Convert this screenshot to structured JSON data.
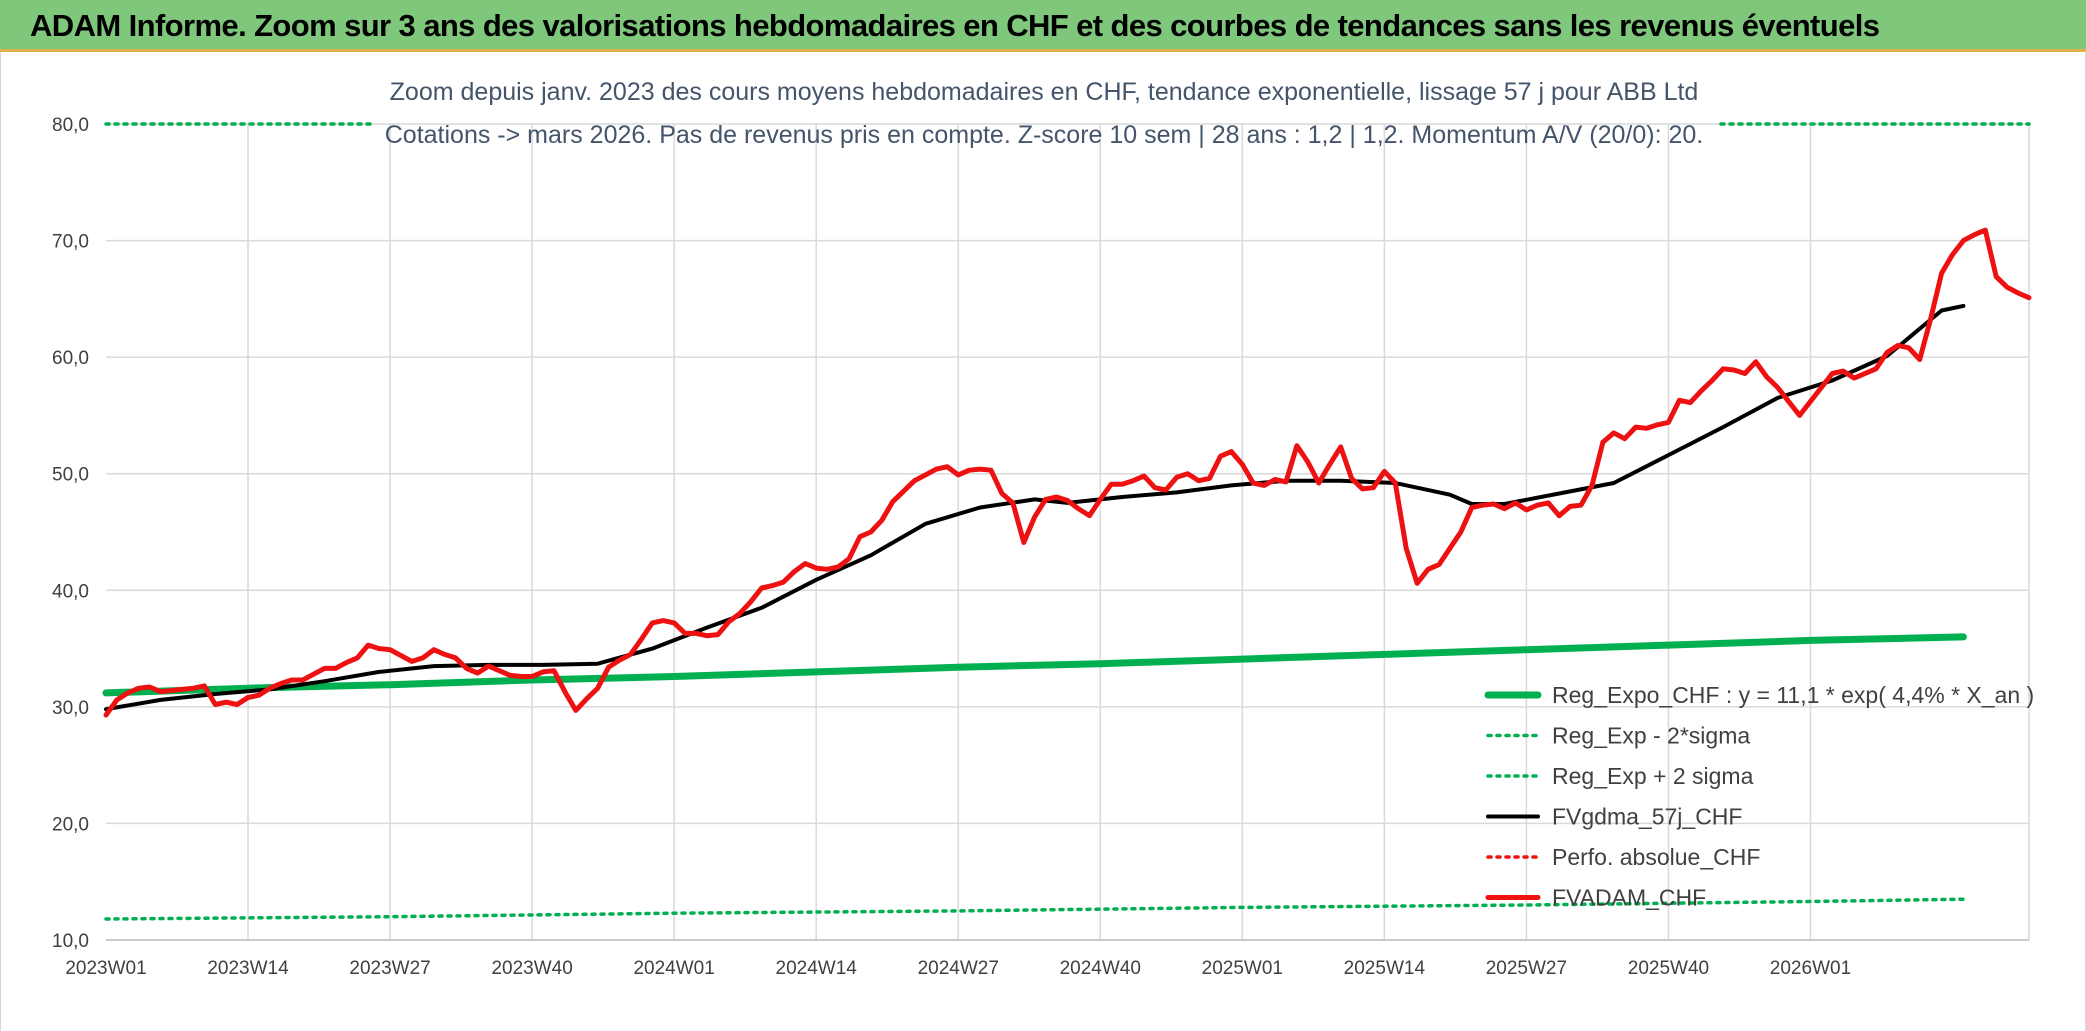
{
  "banner": {
    "title": "ADAM Informe. Zoom sur 3 ans des valorisations hebdomadaires en CHF et des courbes de tendances sans les revenus éventuels"
  },
  "colors": {
    "banner_bg": "#7fc77b",
    "reg_expo": "#00b050",
    "fvgdma": "#000000",
    "fvadam": "#ee1111",
    "perfo": "#ee1111"
  },
  "chart_data": {
    "type": "line",
    "title": "Zoom depuis janv. 2023 des cours moyens hebdomadaires en CHF, tendance exponentielle, lissage 57 j pour ABB Ltd",
    "subtitle": "Cotations -> mars 2026. Pas de revenus pris en compte. Z-score 10 sem | 28 ans : 1,2 | 1,2. Momentum A/V (20/0): 20.",
    "xlabel": "",
    "ylabel": "",
    "ylim": [
      10,
      80
    ],
    "y_ticks": [
      "10,0",
      "20,0",
      "30,0",
      "40,0",
      "50,0",
      "60,0",
      "70,0",
      "80,0"
    ],
    "x_tick_labels": [
      "2023W01",
      "2023W14",
      "2023W27",
      "2023W40",
      "2024W01",
      "2024W14",
      "2024W27",
      "2024W40",
      "2025W01",
      "2025W14",
      "2025W27",
      "2025W40",
      "2026W01"
    ],
    "grid": true,
    "legend_position": "bottom-right",
    "series": [
      {
        "name": "Reg_Expo_CHF : y = 11,1 * exp( 4,4% *  X_an )",
        "style": "solid-thick",
        "color": "#00b050",
        "points": [
          [
            0,
            31.2
          ],
          [
            13,
            31.6
          ],
          [
            26,
            31.9
          ],
          [
            39,
            32.3
          ],
          [
            52,
            32.6
          ],
          [
            65,
            33.0
          ],
          [
            78,
            33.4
          ],
          [
            91,
            33.7
          ],
          [
            104,
            34.1
          ],
          [
            117,
            34.5
          ],
          [
            130,
            34.9
          ],
          [
            143,
            35.3
          ],
          [
            156,
            35.7
          ],
          [
            170,
            36.0
          ]
        ]
      },
      {
        "name": "Reg_Exp - 2*sigma",
        "style": "dotted",
        "color": "#00b050",
        "points": [
          [
            0,
            11.8
          ],
          [
            26,
            12.0
          ],
          [
            52,
            12.3
          ],
          [
            78,
            12.5
          ],
          [
            104,
            12.8
          ],
          [
            130,
            13.0
          ],
          [
            156,
            13.3
          ],
          [
            170,
            13.5
          ]
        ]
      },
      {
        "name": "Reg_Exp + 2 sigma",
        "style": "dotted",
        "color": "#00b050",
        "points": [
          [
            0,
            80.0
          ],
          [
            170,
            80.0
          ]
        ]
      },
      {
        "name": "FVgdma_57j_CHF",
        "style": "solid",
        "color": "#000000",
        "points": [
          [
            0,
            29.8
          ],
          [
            5,
            30.6
          ],
          [
            10,
            31.1
          ],
          [
            15,
            31.5
          ],
          [
            20,
            32.2
          ],
          [
            25,
            33.0
          ],
          [
            30,
            33.5
          ],
          [
            35,
            33.6
          ],
          [
            40,
            33.6
          ],
          [
            45,
            33.7
          ],
          [
            50,
            35.0
          ],
          [
            55,
            36.8
          ],
          [
            60,
            38.5
          ],
          [
            65,
            40.9
          ],
          [
            70,
            43.0
          ],
          [
            75,
            45.7
          ],
          [
            80,
            47.1
          ],
          [
            85,
            47.8
          ],
          [
            88,
            47.5
          ],
          [
            93,
            48.0
          ],
          [
            98,
            48.4
          ],
          [
            103,
            49.0
          ],
          [
            108,
            49.4
          ],
          [
            113,
            49.4
          ],
          [
            118,
            49.2
          ],
          [
            123,
            48.2
          ],
          [
            125,
            47.4
          ],
          [
            128,
            47.4
          ],
          [
            133,
            48.3
          ],
          [
            138,
            49.2
          ],
          [
            143,
            51.6
          ],
          [
            148,
            54.0
          ],
          [
            153,
            56.5
          ],
          [
            158,
            58.0
          ],
          [
            163,
            60.1
          ],
          [
            168,
            64.0
          ],
          [
            170,
            64.4
          ]
        ]
      },
      {
        "name": "Perfo. absolue_CHF",
        "style": "dotted",
        "color": "#ee1111",
        "points": []
      },
      {
        "name": "FVADAM_CHF",
        "style": "solid-thick",
        "color": "#ee1111",
        "points": [
          [
            0,
            29.3
          ],
          [
            1,
            30.6
          ],
          [
            2,
            31.2
          ],
          [
            3,
            31.6
          ],
          [
            4,
            31.7
          ],
          [
            5,
            31.3
          ],
          [
            6,
            31.4
          ],
          [
            7,
            31.5
          ],
          [
            8,
            31.6
          ],
          [
            9,
            31.8
          ],
          [
            10,
            30.2
          ],
          [
            11,
            30.4
          ],
          [
            12,
            30.2
          ],
          [
            13,
            30.8
          ],
          [
            14,
            31.0
          ],
          [
            15,
            31.6
          ],
          [
            16,
            32.0
          ],
          [
            17,
            32.3
          ],
          [
            18,
            32.3
          ],
          [
            19,
            32.8
          ],
          [
            20,
            33.3
          ],
          [
            21,
            33.3
          ],
          [
            22,
            33.8
          ],
          [
            23,
            34.2
          ],
          [
            24,
            35.3
          ],
          [
            25,
            35.0
          ],
          [
            26,
            34.9
          ],
          [
            27,
            34.4
          ],
          [
            28,
            33.9
          ],
          [
            29,
            34.2
          ],
          [
            30,
            34.9
          ],
          [
            31,
            34.5
          ],
          [
            32,
            34.2
          ],
          [
            33,
            33.3
          ],
          [
            34,
            32.9
          ],
          [
            35,
            33.5
          ],
          [
            36,
            33.1
          ],
          [
            37,
            32.7
          ],
          [
            38,
            32.6
          ],
          [
            39,
            32.6
          ],
          [
            40,
            33.0
          ],
          [
            41,
            33.1
          ],
          [
            42,
            31.3
          ],
          [
            43,
            29.7
          ],
          [
            44,
            30.7
          ],
          [
            45,
            31.6
          ],
          [
            46,
            33.4
          ],
          [
            47,
            34.0
          ],
          [
            48,
            34.5
          ],
          [
            49,
            35.8
          ],
          [
            50,
            37.2
          ],
          [
            51,
            37.4
          ],
          [
            52,
            37.2
          ],
          [
            53,
            36.3
          ],
          [
            54,
            36.3
          ],
          [
            55,
            36.1
          ],
          [
            56,
            36.2
          ],
          [
            57,
            37.3
          ],
          [
            58,
            38.0
          ],
          [
            59,
            39.0
          ],
          [
            60,
            40.2
          ],
          [
            61,
            40.4
          ],
          [
            62,
            40.7
          ],
          [
            63,
            41.6
          ],
          [
            64,
            42.3
          ],
          [
            65,
            41.9
          ],
          [
            66,
            41.8
          ],
          [
            67,
            42.0
          ],
          [
            68,
            42.7
          ],
          [
            69,
            44.6
          ],
          [
            70,
            45.0
          ],
          [
            71,
            46.0
          ],
          [
            72,
            47.6
          ],
          [
            73,
            48.5
          ],
          [
            74,
            49.4
          ],
          [
            75,
            49.9
          ],
          [
            76,
            50.4
          ],
          [
            77,
            50.6
          ],
          [
            78,
            49.9
          ],
          [
            79,
            50.3
          ],
          [
            80,
            50.4
          ],
          [
            81,
            50.3
          ],
          [
            82,
            48.3
          ],
          [
            83,
            47.5
          ],
          [
            84,
            44.1
          ],
          [
            85,
            46.3
          ],
          [
            86,
            47.8
          ],
          [
            87,
            48.0
          ],
          [
            88,
            47.7
          ],
          [
            89,
            47.0
          ],
          [
            90,
            46.4
          ],
          [
            91,
            47.8
          ],
          [
            92,
            49.1
          ],
          [
            93,
            49.1
          ],
          [
            94,
            49.4
          ],
          [
            95,
            49.8
          ],
          [
            96,
            48.8
          ],
          [
            97,
            48.6
          ],
          [
            98,
            49.7
          ],
          [
            99,
            50.0
          ],
          [
            100,
            49.4
          ],
          [
            101,
            49.6
          ],
          [
            102,
            51.5
          ],
          [
            103,
            51.9
          ],
          [
            104,
            50.8
          ],
          [
            105,
            49.2
          ],
          [
            106,
            49.0
          ],
          [
            107,
            49.5
          ],
          [
            108,
            49.3
          ],
          [
            109,
            52.4
          ],
          [
            110,
            51.0
          ],
          [
            111,
            49.2
          ],
          [
            112,
            50.8
          ],
          [
            113,
            52.3
          ],
          [
            114,
            49.6
          ],
          [
            115,
            48.7
          ],
          [
            116,
            48.8
          ],
          [
            117,
            50.2
          ],
          [
            118,
            49.2
          ],
          [
            119,
            43.6
          ],
          [
            120,
            40.6
          ],
          [
            121,
            41.8
          ],
          [
            122,
            42.2
          ],
          [
            123,
            43.6
          ],
          [
            124,
            45.0
          ],
          [
            125,
            47.1
          ],
          [
            126,
            47.3
          ],
          [
            127,
            47.4
          ],
          [
            128,
            47.0
          ],
          [
            129,
            47.5
          ],
          [
            130,
            46.9
          ],
          [
            131,
            47.3
          ],
          [
            132,
            47.5
          ],
          [
            133,
            46.4
          ],
          [
            134,
            47.2
          ],
          [
            135,
            47.3
          ],
          [
            136,
            49.0
          ],
          [
            137,
            52.7
          ],
          [
            138,
            53.5
          ],
          [
            139,
            53.0
          ],
          [
            140,
            54.0
          ],
          [
            141,
            53.9
          ],
          [
            142,
            54.2
          ],
          [
            143,
            54.4
          ],
          [
            144,
            56.3
          ],
          [
            145,
            56.1
          ],
          [
            146,
            57.1
          ],
          [
            147,
            58.0
          ],
          [
            148,
            59.0
          ],
          [
            149,
            58.9
          ],
          [
            150,
            58.6
          ],
          [
            151,
            59.6
          ],
          [
            152,
            58.3
          ],
          [
            153,
            57.4
          ],
          [
            154,
            56.2
          ],
          [
            155,
            55.0
          ],
          [
            156,
            56.2
          ],
          [
            157,
            57.4
          ],
          [
            158,
            58.6
          ],
          [
            159,
            58.8
          ],
          [
            160,
            58.2
          ],
          [
            161,
            58.6
          ],
          [
            162,
            59.0
          ],
          [
            163,
            60.4
          ],
          [
            164,
            61.0
          ],
          [
            165,
            60.8
          ],
          [
            166,
            59.8
          ],
          [
            167,
            63.3
          ],
          [
            168,
            67.2
          ],
          [
            169,
            68.8
          ],
          [
            170,
            70.0
          ],
          [
            171,
            70.5
          ],
          [
            172,
            70.9
          ],
          [
            173,
            66.9
          ],
          [
            174,
            66.0
          ],
          [
            175,
            65.5
          ],
          [
            176,
            65.1
          ]
        ]
      }
    ]
  }
}
